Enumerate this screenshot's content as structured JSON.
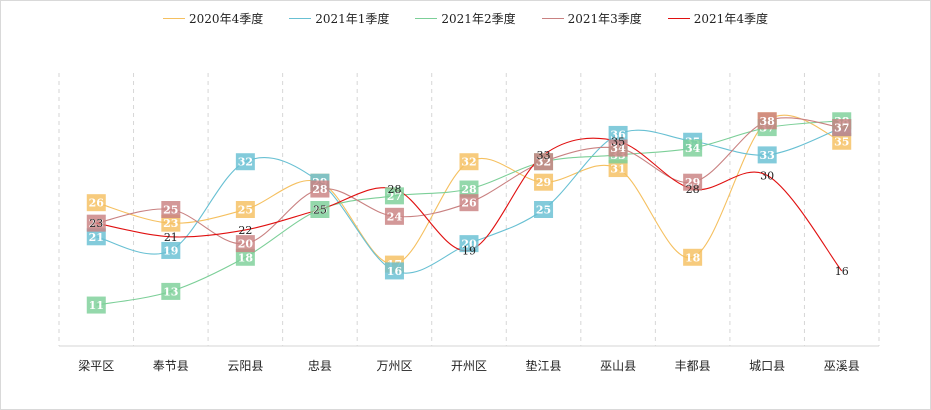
{
  "chart_data": {
    "type": "line",
    "categories": [
      "梁平区",
      "奉节县",
      "云阳县",
      "忠县",
      "万州区",
      "开州区",
      "垫江县",
      "巫山县",
      "丰都县",
      "城口县",
      "巫溪县"
    ],
    "series": [
      {
        "name": "2020年4季度",
        "color": "#f5c060",
        "label_style": "box",
        "values": [
          26,
          23,
          25,
          29,
          17,
          32,
          29,
          31,
          18,
          38,
          35
        ]
      },
      {
        "name": "2021年1季度",
        "color": "#68c0d3",
        "label_style": "box",
        "values": [
          21,
          19,
          32,
          29,
          16,
          20,
          25,
          36,
          35,
          33,
          37
        ]
      },
      {
        "name": "2021年2季度",
        "color": "#7ccf98",
        "label_style": "box",
        "values": [
          11,
          13,
          18,
          25,
          27,
          28,
          32,
          33,
          34,
          37,
          38
        ]
      },
      {
        "name": "2021年3季度",
        "color": "#c98181",
        "label_style": "box",
        "values": [
          23,
          25,
          20,
          28,
          24,
          26,
          32,
          34,
          29,
          38,
          37
        ]
      },
      {
        "name": "2021年4季度",
        "color": "#e01010",
        "label_style": "text",
        "values": [
          23,
          21,
          22,
          25,
          28,
          19,
          33,
          35,
          28,
          30,
          16
        ]
      }
    ],
    "ylim": [
      5,
      45
    ],
    "grid": "vertical-dashed",
    "legend": "top",
    "xlabel": "",
    "ylabel": ""
  }
}
